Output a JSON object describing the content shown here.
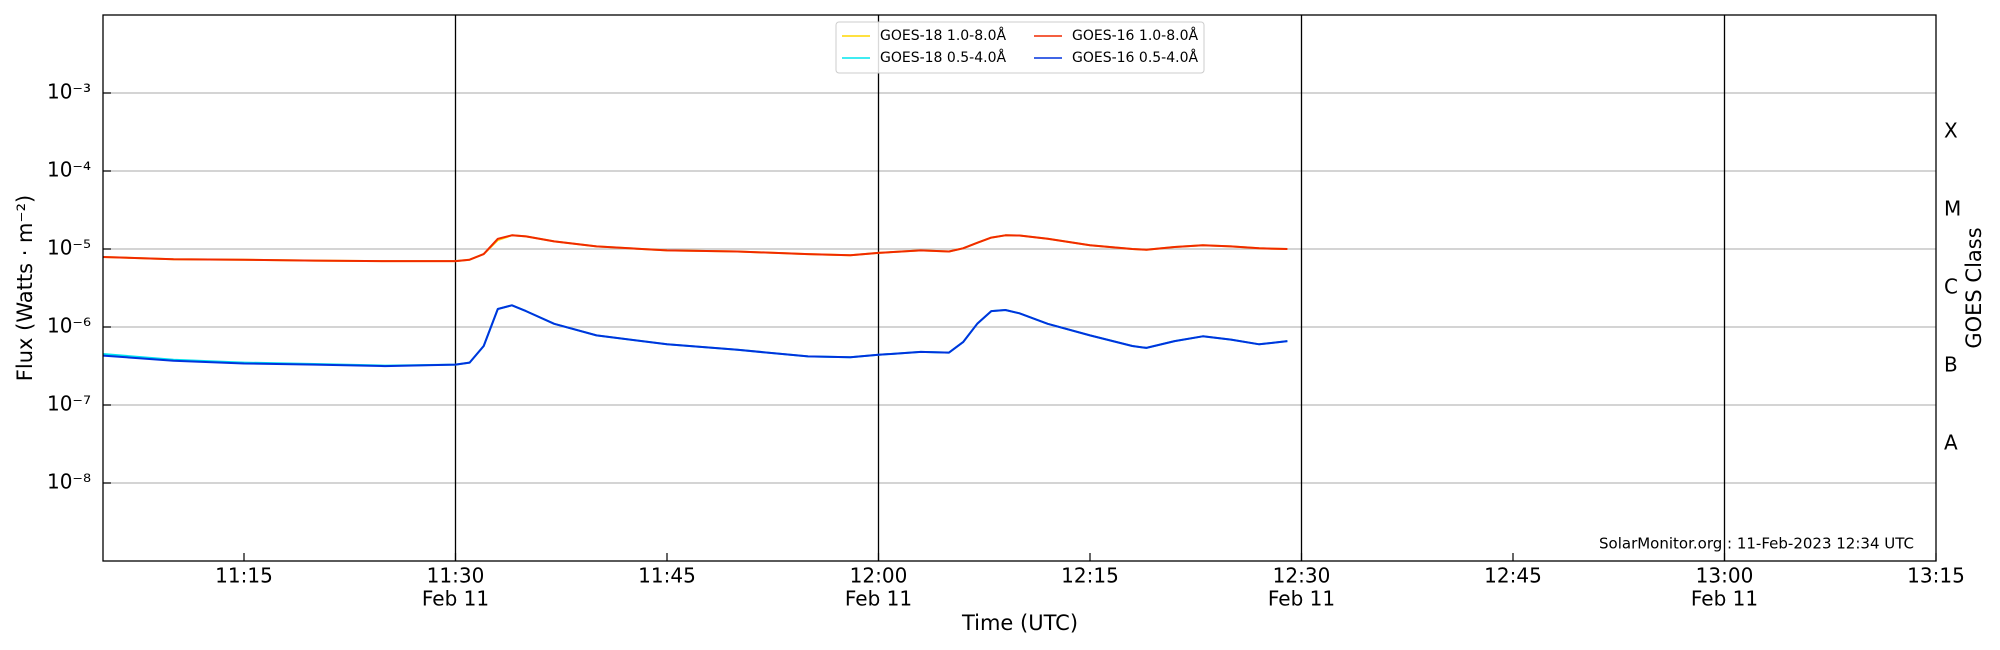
{
  "chart_data": {
    "type": "line",
    "y_label": "Flux (Watts · m⁻²)",
    "x_label": "Time (UTC)",
    "y2_label": "GOES Class",
    "annotation": "SolarMonitor.org : 11-Feb-2023 12:34 UTC",
    "log_y": true,
    "grid": true,
    "legend_position": "upper center",
    "xlim": [
      "11:05",
      "13:15"
    ],
    "xticks": [
      "11:15",
      {
        "value": "11:30",
        "label": "11:30",
        "sublabel": "Feb 11"
      },
      "11:45",
      {
        "value": "12:00",
        "label": "12:00",
        "sublabel": "Feb 11"
      },
      "12:15",
      {
        "value": "12:30",
        "label": "12:30",
        "sublabel": "Feb 11"
      },
      "12:45",
      {
        "value": "13:00",
        "label": "13:00",
        "sublabel": "Feb 11"
      },
      "13:15"
    ],
    "vlines": [
      "11:30",
      "12:00",
      "12:30",
      "13:00"
    ],
    "ylim": [
      1e-09,
      0.01
    ],
    "yticks": [
      {
        "value": 1e-08,
        "label": "10⁻⁸"
      },
      {
        "value": 1e-07,
        "label": "10⁻⁷"
      },
      {
        "value": 1e-06,
        "label": "10⁻⁶"
      },
      {
        "value": 1e-05,
        "label": "10⁻⁵"
      },
      {
        "value": 0.0001,
        "label": "10⁻⁴"
      },
      {
        "value": 0.001,
        "label": "10⁻³"
      }
    ],
    "y2lim": [
      1e-09,
      0.01
    ],
    "y2ticks": [
      {
        "value": 3.16e-08,
        "label": "A"
      },
      {
        "value": 3.16e-07,
        "label": "B"
      },
      {
        "value": 3.16e-06,
        "label": "C"
      },
      {
        "value": 3.16e-05,
        "label": "M"
      },
      {
        "value": 0.000316,
        "label": "X"
      }
    ],
    "x": [
      "11:05",
      "11:10",
      "11:15",
      "11:20",
      "11:25",
      "11:30",
      "11:31",
      "11:32",
      "11:33",
      "11:34",
      "11:35",
      "11:37",
      "11:40",
      "11:45",
      "11:50",
      "11:55",
      "11:58",
      "12:00",
      "12:03",
      "12:05",
      "12:06",
      "12:07",
      "12:08",
      "12:09",
      "12:10",
      "12:12",
      "12:15",
      "12:18",
      "12:19",
      "12:21",
      "12:23",
      "12:25",
      "12:27",
      "12:29"
    ],
    "series": [
      {
        "name": "GOES-18 1.0-8.0Å",
        "color": "#ffd700",
        "values": [
          7.9e-06,
          7.4e-06,
          7.3e-06,
          7.1e-06,
          7e-06,
          7e-06,
          7.3e-06,
          8.6e-06,
          1.3e-05,
          1.5e-05,
          1.45e-05,
          1.25e-05,
          1.08e-05,
          9.6e-06,
          9.3e-06,
          8.6e-06,
          8.3e-06,
          8.9e-06,
          9.6e-06,
          9.3e-06,
          1.02e-05,
          1.2e-05,
          1.4e-05,
          1.5e-05,
          1.49e-05,
          1.35e-05,
          1.12e-05,
          1e-05,
          9.8e-06,
          1.06e-05,
          1.12e-05,
          1.08e-05,
          1.02e-05,
          1e-05
        ]
      },
      {
        "name": "GOES-18 0.5-4.0Å",
        "color": "#00e5ee",
        "values": [
          4.5e-07,
          3.8e-07,
          3.5e-07,
          3.35e-07,
          3.2e-07,
          3.3e-07,
          3.5e-07,
          5.7e-07,
          1.7e-06,
          1.9e-06,
          1.6e-06,
          1.1e-06,
          7.8e-07,
          6e-07,
          5.1e-07,
          4.2e-07,
          4.1e-07,
          4.4e-07,
          4.8e-07,
          4.7e-07,
          6.4e-07,
          1.1e-06,
          1.6e-06,
          1.65e-06,
          1.5e-06,
          1.1e-06,
          7.8e-07,
          5.7e-07,
          5.4e-07,
          6.6e-07,
          7.6e-07,
          6.9e-07,
          6e-07,
          6.6e-07
        ]
      },
      {
        "name": "GOES-16 1.0-8.0Å",
        "color": "#f02a00",
        "values": [
          7.9e-06,
          7.4e-06,
          7.3e-06,
          7.1e-06,
          7e-06,
          7e-06,
          7.3e-06,
          8.6e-06,
          1.35e-05,
          1.5e-05,
          1.45e-05,
          1.25e-05,
          1.08e-05,
          9.6e-06,
          9.3e-06,
          8.6e-06,
          8.3e-06,
          8.9e-06,
          9.6e-06,
          9.3e-06,
          1.02e-05,
          1.2e-05,
          1.4e-05,
          1.5e-05,
          1.49e-05,
          1.35e-05,
          1.12e-05,
          1e-05,
          9.8e-06,
          1.06e-05,
          1.12e-05,
          1.08e-05,
          1.02e-05,
          1e-05
        ]
      },
      {
        "name": "GOES-16 0.5-4.0Å",
        "color": "#0033dd",
        "values": [
          4.3e-07,
          3.7e-07,
          3.4e-07,
          3.3e-07,
          3.15e-07,
          3.3e-07,
          3.5e-07,
          5.7e-07,
          1.7e-06,
          1.9e-06,
          1.6e-06,
          1.1e-06,
          7.8e-07,
          6e-07,
          5.1e-07,
          4.2e-07,
          4.1e-07,
          4.4e-07,
          4.8e-07,
          4.7e-07,
          6.4e-07,
          1.1e-06,
          1.6e-06,
          1.65e-06,
          1.5e-06,
          1.1e-06,
          7.8e-07,
          5.7e-07,
          5.4e-07,
          6.6e-07,
          7.6e-07,
          6.9e-07,
          6e-07,
          6.6e-07
        ]
      }
    ]
  }
}
